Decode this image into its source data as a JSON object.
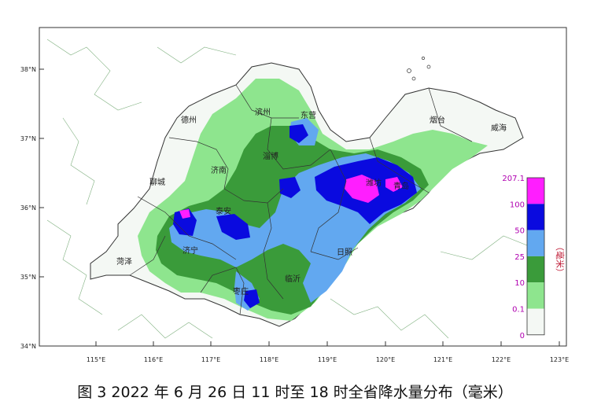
{
  "caption": "图 3 2022 年 6 月 26 日 11 时至 18 时全省降水量分布（毫米）",
  "axes": {
    "lat_labels": [
      "38°N",
      "37°N",
      "36°N",
      "35°N",
      "34°N"
    ],
    "lon_labels": [
      "115°E",
      "116°E",
      "117°E",
      "118°E",
      "119°E",
      "120°E",
      "121°E",
      "122°E",
      "123°E"
    ]
  },
  "cities": [
    "德州",
    "滨州",
    "东营",
    "烟台",
    "威海",
    "淄博",
    "济南",
    "聊城",
    "泰安",
    "潍坊",
    "青岛",
    "济宁",
    "日照",
    "菏泽",
    "临沂",
    "枣庄"
  ],
  "legend": {
    "unit": "（毫米）",
    "levels": [
      "207.1",
      "100",
      "50",
      "25",
      "10",
      "0.1",
      "0"
    ],
    "colors": [
      "#ff1eff",
      "#0a0adf",
      "#62a8f0",
      "#3a9b3a",
      "#8ee58e",
      "#f4f8f4"
    ]
  }
}
